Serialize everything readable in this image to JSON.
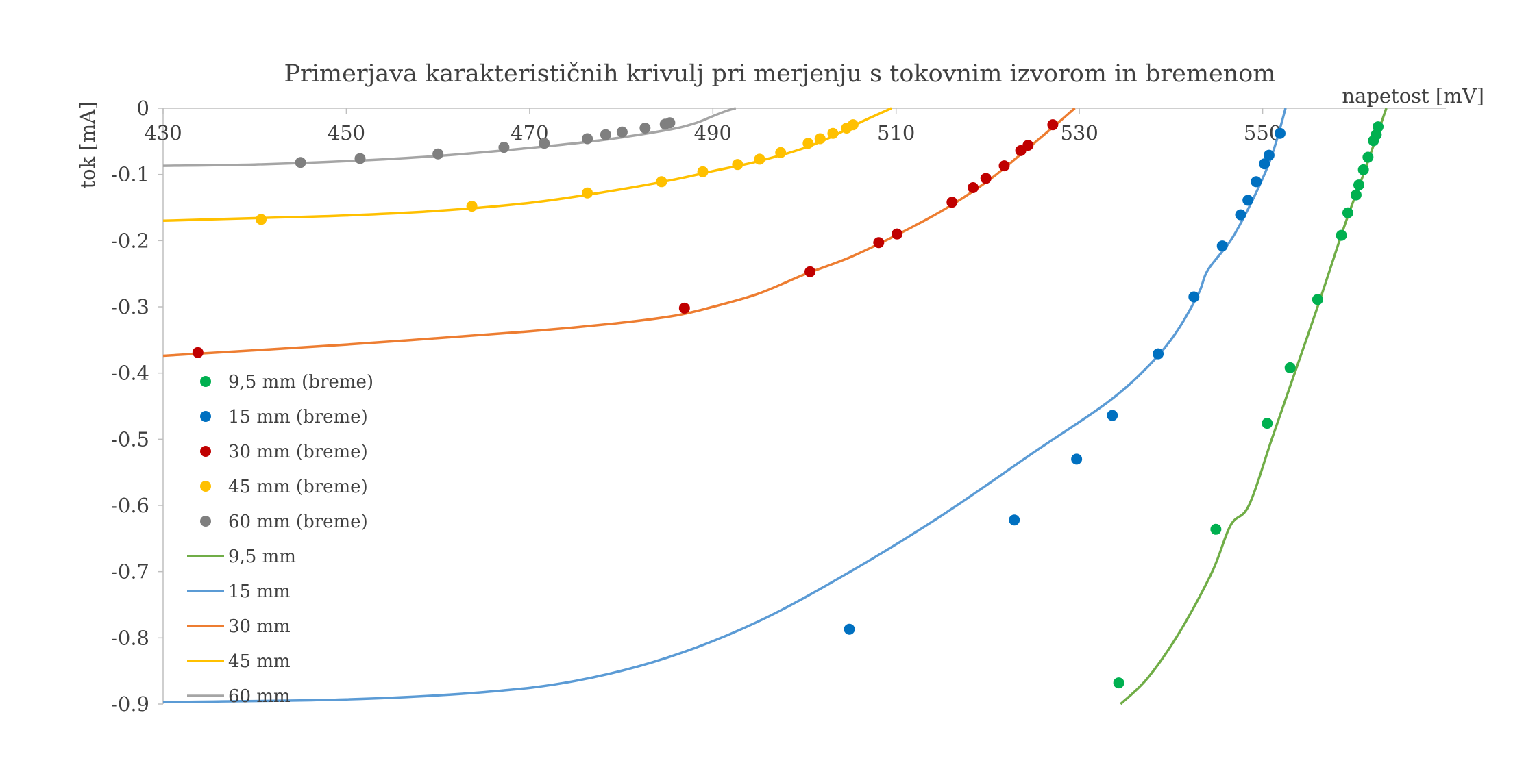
{
  "chart_data": {
    "type": "scatter",
    "title": "Primerjava karakterističnih krivulj pri merjenju s tokovnim izvorom in bremenom",
    "xlabel": "napetost [mV]",
    "ylabel": "tok [mA]",
    "xlim": [
      430,
      570
    ],
    "ylim": [
      -0.9,
      0
    ],
    "x_ticks": [
      "430",
      "450",
      "470",
      "490",
      "510",
      "530",
      "550"
    ],
    "y_ticks": [
      "0",
      "-0.1",
      "-0.2",
      "-0.3",
      "-0.4",
      "-0.5",
      "-0.6",
      "-0.7",
      "-0.8",
      "-0.9"
    ],
    "x_axis_position": "top",
    "grid": false,
    "legend_position": "left",
    "series": [
      {
        "name": "9,5 mm (breme)",
        "kind": "markers",
        "color": "#00B050",
        "points": [
          [
            534.3,
            -0.868
          ],
          [
            544.9,
            -0.636
          ],
          [
            550.5,
            -0.476
          ],
          [
            553.0,
            -0.392
          ],
          [
            556.0,
            -0.289
          ],
          [
            558.6,
            -0.192
          ],
          [
            559.3,
            -0.158
          ],
          [
            560.2,
            -0.131
          ],
          [
            560.5,
            -0.116
          ],
          [
            561.0,
            -0.093
          ],
          [
            561.5,
            -0.074
          ],
          [
            562.1,
            -0.049
          ],
          [
            562.4,
            -0.04
          ],
          [
            562.6,
            -0.028
          ]
        ]
      },
      {
        "name": "15 mm (breme)",
        "kind": "markers",
        "color": "#0070C0",
        "points": [
          [
            504.9,
            -0.787
          ],
          [
            522.9,
            -0.622
          ],
          [
            529.7,
            -0.53
          ],
          [
            533.6,
            -0.464
          ],
          [
            538.6,
            -0.371
          ],
          [
            542.5,
            -0.285
          ],
          [
            545.6,
            -0.208
          ],
          [
            547.6,
            -0.161
          ],
          [
            548.4,
            -0.139
          ],
          [
            549.3,
            -0.111
          ],
          [
            550.2,
            -0.084
          ],
          [
            550.7,
            -0.071
          ],
          [
            551.9,
            -0.038
          ]
        ]
      },
      {
        "name": "30 mm (breme)",
        "kind": "markers",
        "color": "#C00000",
        "points": [
          [
            433.8,
            -0.369
          ],
          [
            486.9,
            -0.302
          ],
          [
            500.6,
            -0.247
          ],
          [
            508.1,
            -0.203
          ],
          [
            510.1,
            -0.19
          ],
          [
            516.1,
            -0.142
          ],
          [
            518.4,
            -0.12
          ],
          [
            519.8,
            -0.106
          ],
          [
            521.8,
            -0.087
          ],
          [
            523.6,
            -0.064
          ],
          [
            524.4,
            -0.056
          ],
          [
            527.1,
            -0.025
          ]
        ]
      },
      {
        "name": "45 mm (breme)",
        "kind": "markers",
        "color": "#FFC000",
        "points": [
          [
            440.7,
            -0.168
          ],
          [
            463.7,
            -0.148
          ],
          [
            476.3,
            -0.128
          ],
          [
            484.4,
            -0.111
          ],
          [
            488.9,
            -0.096
          ],
          [
            492.7,
            -0.085
          ],
          [
            495.1,
            -0.077
          ],
          [
            497.4,
            -0.067
          ],
          [
            500.4,
            -0.053
          ],
          [
            501.7,
            -0.046
          ],
          [
            503.1,
            -0.038
          ],
          [
            504.6,
            -0.03
          ],
          [
            505.3,
            -0.025
          ]
        ]
      },
      {
        "name": "60 mm (breme)",
        "kind": "markers",
        "color": "#7F7F7F",
        "points": [
          [
            445.0,
            -0.082
          ],
          [
            451.5,
            -0.076
          ],
          [
            460.0,
            -0.069
          ],
          [
            467.2,
            -0.059
          ],
          [
            471.6,
            -0.053
          ],
          [
            476.3,
            -0.046
          ],
          [
            478.3,
            -0.04
          ],
          [
            480.1,
            -0.036
          ],
          [
            482.6,
            -0.03
          ],
          [
            484.8,
            -0.024
          ],
          [
            485.3,
            -0.022
          ]
        ]
      },
      {
        "name": "9,5 mm",
        "kind": "line",
        "color": "#70AD47",
        "points": [
          [
            534.5,
            -0.9
          ],
          [
            537.5,
            -0.86
          ],
          [
            541.0,
            -0.79
          ],
          [
            544.5,
            -0.7
          ],
          [
            546.5,
            -0.63
          ],
          [
            548.5,
            -0.6
          ],
          [
            551.0,
            -0.5
          ],
          [
            553.0,
            -0.42
          ],
          [
            556.0,
            -0.3
          ],
          [
            559.0,
            -0.175
          ],
          [
            561.0,
            -0.1
          ],
          [
            562.5,
            -0.04
          ],
          [
            563.5,
            0.0
          ]
        ]
      },
      {
        "name": "15 mm",
        "kind": "line",
        "color": "#5B9BD5",
        "points": [
          [
            430.0,
            -0.897
          ],
          [
            450.0,
            -0.893
          ],
          [
            465.0,
            -0.882
          ],
          [
            475.0,
            -0.865
          ],
          [
            485.0,
            -0.83
          ],
          [
            495.0,
            -0.775
          ],
          [
            505.0,
            -0.7
          ],
          [
            515.0,
            -0.615
          ],
          [
            525.0,
            -0.52
          ],
          [
            533.0,
            -0.445
          ],
          [
            537.5,
            -0.39
          ],
          [
            540.5,
            -0.34
          ],
          [
            543.0,
            -0.28
          ],
          [
            544.0,
            -0.245
          ],
          [
            546.5,
            -0.2
          ],
          [
            548.5,
            -0.15
          ],
          [
            550.5,
            -0.09
          ],
          [
            551.5,
            -0.05
          ],
          [
            552.5,
            0.0
          ]
        ]
      },
      {
        "name": "30 mm",
        "kind": "line",
        "color": "#ED7D31",
        "points": [
          [
            430.0,
            -0.374
          ],
          [
            450.0,
            -0.357
          ],
          [
            470.0,
            -0.337
          ],
          [
            480.0,
            -0.324
          ],
          [
            486.0,
            -0.313
          ],
          [
            490.0,
            -0.3
          ],
          [
            495.0,
            -0.28
          ],
          [
            500.0,
            -0.251
          ],
          [
            505.0,
            -0.225
          ],
          [
            510.0,
            -0.192
          ],
          [
            515.0,
            -0.155
          ],
          [
            520.0,
            -0.11
          ],
          [
            524.0,
            -0.065
          ],
          [
            527.0,
            -0.03
          ],
          [
            529.5,
            0.0
          ]
        ]
      },
      {
        "name": "45 mm",
        "kind": "line",
        "color": "#FFC000",
        "points": [
          [
            430.0,
            -0.17
          ],
          [
            440.0,
            -0.166
          ],
          [
            450.0,
            -0.162
          ],
          [
            460.0,
            -0.155
          ],
          [
            470.0,
            -0.143
          ],
          [
            478.0,
            -0.127
          ],
          [
            485.0,
            -0.11
          ],
          [
            490.0,
            -0.095
          ],
          [
            495.0,
            -0.08
          ],
          [
            500.0,
            -0.06
          ],
          [
            503.0,
            -0.043
          ],
          [
            506.0,
            -0.022
          ],
          [
            509.5,
            0.0
          ]
        ]
      },
      {
        "name": "60 mm",
        "kind": "line",
        "color": "#A5A5A5",
        "points": [
          [
            430.0,
            -0.087
          ],
          [
            440.0,
            -0.085
          ],
          [
            450.0,
            -0.08
          ],
          [
            460.0,
            -0.072
          ],
          [
            470.0,
            -0.06
          ],
          [
            478.0,
            -0.048
          ],
          [
            485.0,
            -0.033
          ],
          [
            488.0,
            -0.023
          ],
          [
            490.0,
            -0.012
          ],
          [
            491.5,
            -0.004
          ],
          [
            492.5,
            0.0
          ]
        ]
      }
    ]
  }
}
